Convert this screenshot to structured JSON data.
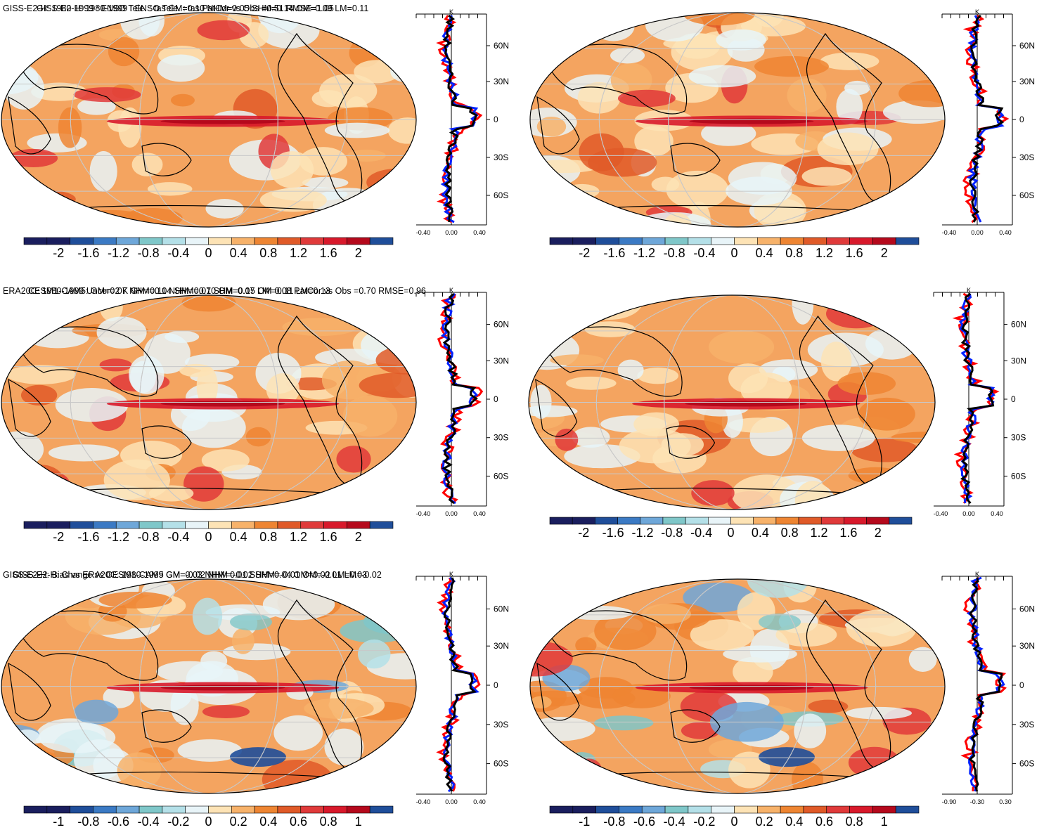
{
  "colors": {
    "negative_ramp": [
      "#1a1e5e",
      "#1f4e9a",
      "#3b7ac4",
      "#6ea7d9",
      "#7fc7c9",
      "#b4e0e8",
      "#e8f4f8"
    ],
    "positive_ramp": [
      "#fde3b5",
      "#f7b26a",
      "#ee8532",
      "#e05a28",
      "#e03a3a",
      "#d8192b",
      "#b5091c"
    ],
    "ocean_fill": "#f4a460",
    "land_line": "#000000",
    "grid_line": "#c8c8c8",
    "profile_model": "#000000",
    "profile_obs": "#ff0000",
    "profile_other": "#0022ff"
  },
  "panels": [
    {
      "title": "GISS-E2-H: 1980-1999 : ENSO Tele. : tas GM=0.10 NHM=0.05 SHM=0.14 OM=0.09 LM=0.11",
      "colorbar_labels": [
        "-2",
        "-1.6",
        "-1.2",
        "-0.8",
        "-0.4",
        "0",
        "0.4",
        "0.8",
        "1.2",
        "1.6",
        "2"
      ],
      "profile_unit": "K",
      "profile_xticks": [
        "-0.40",
        "0.00",
        "0.40"
      ],
      "profile_lat_labels": [
        "60N",
        "30N",
        "0",
        "30S",
        "60S"
      ]
    },
    {
      "title": "GISS-E2-H: 1980-1999 : ENSO Tele. : tas PatCor vs Obs =0.51 RMSE=1.05",
      "colorbar_labels": [
        "-2",
        "-1.6",
        "-1.2",
        "-0.8",
        "-0.4",
        "0",
        "0.4",
        "0.8",
        "1.2",
        "1.6",
        "2"
      ],
      "profile_unit": "K",
      "profile_xticks": [
        "-0.40",
        "0.00",
        "0.40"
      ],
      "profile_lat_labels": [
        "60N",
        "30N",
        "0",
        "30S",
        "60S"
      ]
    },
    {
      "title": "ERA20C: 1980-1999 Uncer=2 K GM=0.11 NHM=0.07 SHM=0.15 OM=0.11 LM=0.13",
      "colorbar_labels": [
        "-2",
        "-1.6",
        "-1.2",
        "-0.8",
        "-0.4",
        "0",
        "0.4",
        "0.8",
        "1.2",
        "1.6",
        "2"
      ],
      "profile_unit": "K",
      "profile_xticks": [
        "-0.40",
        "0.00",
        "0.40"
      ],
      "profile_lat_labels": [
        "60N",
        "30N",
        "0",
        "30S",
        "60S"
      ]
    },
    {
      "title": "CESM1-CAM5: GM=0.07 NHM=0.04 SHM=0.10 OM=0.07 LM=0.08 PatCor vs Obs =0.70 RMSE=0.96",
      "colorbar_labels": [
        "-2",
        "-1.6",
        "-1.2",
        "-0.8",
        "-0.4",
        "0",
        "0.4",
        "0.8",
        "1.2",
        "1.6",
        "2"
      ],
      "profile_unit": "K",
      "profile_xticks": [
        "-0.40",
        "0.00",
        "0.40"
      ],
      "profile_lat_labels": [
        "60N",
        "30N",
        "0",
        "30S",
        "60S"
      ]
    },
    {
      "title": "GISS-E2-H: Bias vs ERA20C: 1980-1999 GM=-0.02 NHM=-0.02 SHM=-0.01 OM=-0.01 LM=-0.02",
      "colorbar_labels": [
        "-1",
        "-0.8",
        "-0.6",
        "-0.4",
        "-0.2",
        "0",
        "0.2",
        "0.4",
        "0.6",
        "0.8",
        "1"
      ],
      "profile_unit": "K",
      "profile_xticks": [
        "-0.40",
        "0.00",
        "0.40"
      ],
      "profile_lat_labels": [
        "60N",
        "30N",
        "0",
        "30S",
        "60S"
      ]
    },
    {
      "title": "GISS-E2-H: Change vs CESM1-CAM5 GM=0.03 NHM=0.01 SHM=0.04 OM=0.02 LM=0.03",
      "colorbar_labels": [
        "-1",
        "-0.8",
        "-0.6",
        "-0.4",
        "-0.2",
        "0",
        "0.2",
        "0.4",
        "0.6",
        "0.8",
        "1"
      ],
      "profile_unit": "K",
      "profile_xticks": [
        "-0.90",
        "-0.30",
        "0.30"
      ],
      "profile_lat_labels": [
        "60N",
        "30N",
        "0",
        "30S",
        "60S"
      ]
    }
  ]
}
